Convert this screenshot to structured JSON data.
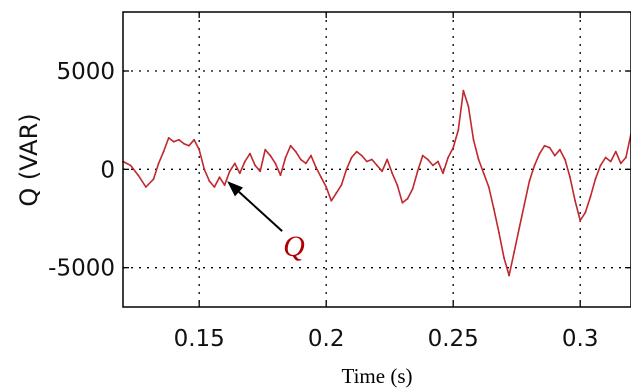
{
  "chart_data": {
    "type": "line",
    "xlabel": "Time (s)",
    "ylabel": "Q (VAR)",
    "xlim": [
      0.12,
      0.32
    ],
    "ylim": [
      -7000,
      8000
    ],
    "xticks": [
      0.15,
      0.2,
      0.25,
      0.3
    ],
    "yticks": [
      -5000,
      0,
      5000
    ],
    "xtick_labels": [
      "0.15",
      "0.2",
      "0.25",
      "0.3"
    ],
    "ytick_labels": [
      "-5000",
      "0",
      "5000"
    ],
    "grid": true,
    "annotation": {
      "text": "Q",
      "arrow_to": [
        0.161,
        -600
      ]
    },
    "series": [
      {
        "color": "#c0282d",
        "x": [
          0.12,
          0.123,
          0.126,
          0.129,
          0.132,
          0.134,
          0.136,
          0.138,
          0.14,
          0.142,
          0.144,
          0.146,
          0.148,
          0.15,
          0.152,
          0.154,
          0.156,
          0.158,
          0.16,
          0.162,
          0.164,
          0.166,
          0.168,
          0.17,
          0.172,
          0.174,
          0.176,
          0.178,
          0.18,
          0.182,
          0.184,
          0.186,
          0.188,
          0.19,
          0.192,
          0.194,
          0.196,
          0.198,
          0.2,
          0.202,
          0.204,
          0.206,
          0.208,
          0.21,
          0.212,
          0.214,
          0.216,
          0.218,
          0.22,
          0.222,
          0.224,
          0.226,
          0.228,
          0.23,
          0.232,
          0.234,
          0.236,
          0.238,
          0.24,
          0.242,
          0.244,
          0.246,
          0.248,
          0.25,
          0.252,
          0.254,
          0.256,
          0.258,
          0.26,
          0.262,
          0.264,
          0.266,
          0.268,
          0.27,
          0.272,
          0.274,
          0.276,
          0.278,
          0.28,
          0.282,
          0.284,
          0.286,
          0.288,
          0.29,
          0.292,
          0.294,
          0.296,
          0.298,
          0.3,
          0.302,
          0.304,
          0.306,
          0.308,
          0.31,
          0.312,
          0.314,
          0.316,
          0.318,
          0.32
        ],
        "y": [
          400,
          200,
          -300,
          -900,
          -500,
          300,
          900,
          1600,
          1400,
          1500,
          1300,
          1200,
          1500,
          1000,
          0,
          -600,
          -900,
          -400,
          -800,
          -100,
          300,
          -200,
          400,
          800,
          200,
          -100,
          1000,
          700,
          300,
          -300,
          600,
          1200,
          900,
          500,
          300,
          700,
          100,
          -400,
          -900,
          -1600,
          -1200,
          -800,
          0,
          600,
          900,
          700,
          400,
          500,
          200,
          -100,
          500,
          -200,
          -800,
          -1700,
          -1500,
          -1000,
          -100,
          700,
          500,
          200,
          400,
          -200,
          600,
          1100,
          2000,
          4000,
          3200,
          1500,
          500,
          -200,
          -900,
          -2000,
          -3200,
          -4500,
          -5400,
          -4200,
          -3000,
          -1800,
          -600,
          200,
          800,
          1200,
          1100,
          700,
          1000,
          500,
          -400,
          -1600,
          -2600,
          -2200,
          -1400,
          -500,
          200,
          600,
          400,
          900,
          300,
          600,
          1800
        ]
      }
    ]
  }
}
